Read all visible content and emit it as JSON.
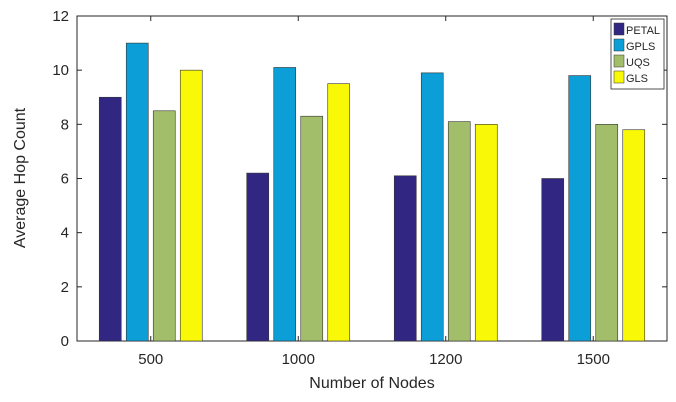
{
  "chart_data": {
    "type": "bar",
    "title": "",
    "xlabel": "Number of Nodes",
    "ylabel": "Average Hop Count",
    "categories": [
      "500",
      "1000",
      "1200",
      "1500"
    ],
    "ylim": [
      0,
      12
    ],
    "yticks": [
      0,
      2,
      4,
      6,
      8,
      10,
      12
    ],
    "grid": false,
    "legend_position": "top-right",
    "series": [
      {
        "name": "PETAL",
        "color": "#312783",
        "values": [
          9,
          6.2,
          6.1,
          6
        ]
      },
      {
        "name": "GPLS",
        "color": "#0c9ed6",
        "values": [
          11,
          10.1,
          9.9,
          9.8
        ]
      },
      {
        "name": "UQS",
        "color": "#a3be6a",
        "values": [
          8.5,
          8.3,
          8.1,
          8
        ]
      },
      {
        "name": "GLS",
        "color": "#f8f807",
        "values": [
          10,
          9.5,
          8,
          7.8
        ]
      }
    ]
  }
}
